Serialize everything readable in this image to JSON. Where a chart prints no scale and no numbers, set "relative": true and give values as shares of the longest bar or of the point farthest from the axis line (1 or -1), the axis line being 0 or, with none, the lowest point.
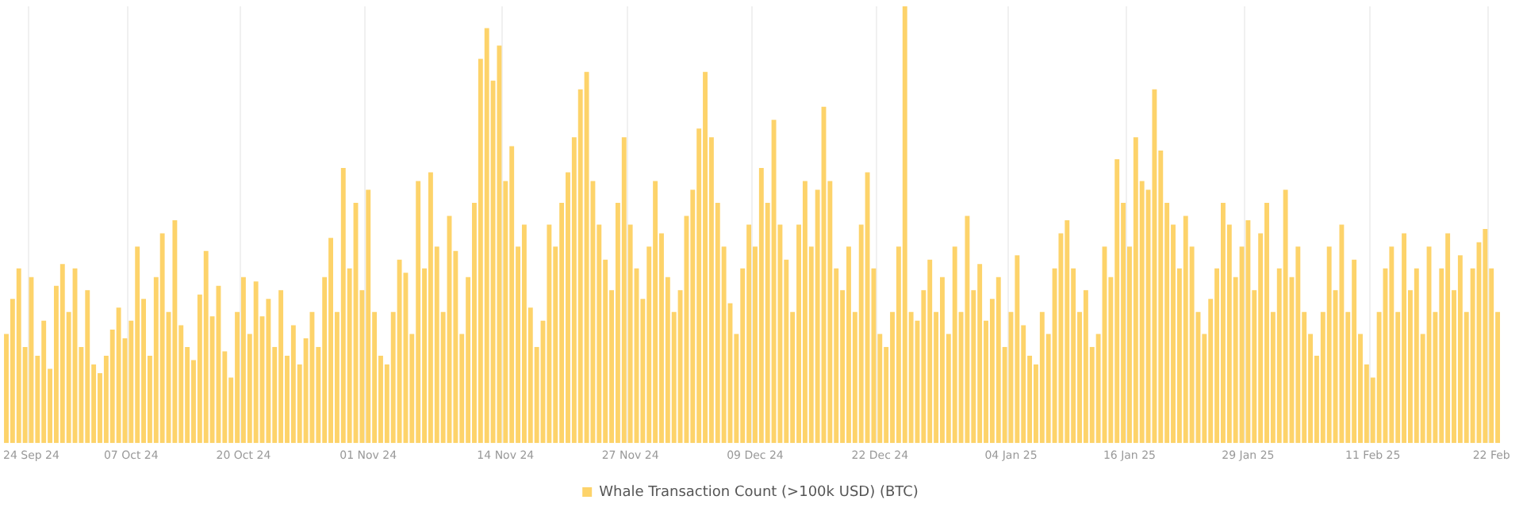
{
  "chart_data": {
    "type": "bar",
    "relative": true,
    "grid": "x",
    "legend": "bottom",
    "categories": [
      null,
      null,
      null,
      null,
      "24 Sep 24",
      null,
      null,
      null,
      null,
      null,
      null,
      null,
      null,
      null,
      null,
      null,
      null,
      null,
      null,
      null,
      "07 Oct 24",
      null,
      null,
      null,
      null,
      null,
      null,
      null,
      null,
      null,
      null,
      null,
      null,
      null,
      null,
      null,
      null,
      null,
      "20 Oct 24",
      null,
      null,
      null,
      null,
      null,
      null,
      null,
      null,
      null,
      null,
      null,
      null,
      null,
      null,
      null,
      null,
      null,
      null,
      null,
      "01 Nov 24",
      null,
      null,
      null,
      null,
      null,
      null,
      null,
      null,
      null,
      null,
      null,
      null,
      null,
      null,
      null,
      null,
      null,
      null,
      null,
      null,
      null,
      "14 Nov 24",
      null,
      null,
      null,
      null,
      null,
      null,
      null,
      null,
      null,
      null,
      null,
      null,
      null,
      null,
      null,
      null,
      null,
      null,
      null,
      "27 Nov 24",
      null,
      null,
      null,
      null,
      null,
      null,
      null,
      null,
      null,
      null,
      null,
      null,
      null,
      null,
      null,
      null,
      null,
      null,
      null,
      "09 Dec 24",
      null,
      null,
      null,
      null,
      null,
      null,
      null,
      null,
      null,
      null,
      null,
      null,
      null,
      null,
      null,
      null,
      null,
      null,
      null,
      "22 Dec 24",
      null,
      null,
      null,
      null,
      null,
      null,
      null,
      null,
      null,
      null,
      null,
      null,
      null,
      null,
      null,
      null,
      null,
      null,
      null,
      null,
      "04 Jan 25",
      null,
      null,
      null,
      null,
      null,
      null,
      null,
      null,
      null,
      null,
      null,
      null,
      null,
      null,
      null,
      null,
      null,
      null,
      "16 Jan 25",
      null,
      null,
      null,
      null,
      null,
      null,
      null,
      null,
      null,
      null,
      null,
      null,
      null,
      null,
      null,
      null,
      null,
      null,
      "29 Jan 25",
      null,
      null,
      null,
      null,
      null,
      null,
      null,
      null,
      null,
      null,
      null,
      null,
      null,
      null,
      null,
      null,
      null,
      null,
      null,
      "11 Feb 25",
      null,
      null,
      null,
      null,
      null,
      null,
      null,
      null,
      null,
      null,
      null,
      null,
      null,
      null,
      null,
      null,
      null,
      null,
      "22 Feb",
      null
    ],
    "series": [
      {
        "name": "Whale Transaction Count (>100k USD) (BTC)",
        "color": "#fdd36a",
        "values": [
          0.25,
          0.33,
          0.4,
          0.22,
          0.38,
          0.2,
          0.28,
          0.17,
          0.36,
          0.41,
          0.3,
          0.4,
          0.22,
          0.35,
          0.18,
          0.16,
          0.2,
          0.26,
          0.31,
          0.24,
          0.28,
          0.45,
          0.33,
          0.2,
          0.38,
          0.48,
          0.3,
          0.51,
          0.27,
          0.22,
          0.19,
          0.34,
          0.44,
          0.29,
          0.36,
          0.21,
          0.15,
          0.3,
          0.38,
          0.25,
          0.37,
          0.29,
          0.33,
          0.22,
          0.35,
          0.2,
          0.27,
          0.18,
          0.24,
          0.3,
          0.22,
          0.38,
          0.47,
          0.3,
          0.63,
          0.4,
          0.55,
          0.35,
          0.58,
          0.3,
          0.2,
          0.18,
          0.3,
          0.42,
          0.39,
          0.25,
          0.6,
          0.4,
          0.62,
          0.45,
          0.3,
          0.52,
          0.44,
          0.25,
          0.38,
          0.55,
          0.88,
          0.95,
          0.83,
          0.91,
          0.6,
          0.68,
          0.45,
          0.5,
          0.31,
          0.22,
          0.28,
          0.5,
          0.45,
          0.55,
          0.62,
          0.7,
          0.81,
          0.85,
          0.6,
          0.5,
          0.42,
          0.35,
          0.55,
          0.7,
          0.5,
          0.4,
          0.33,
          0.45,
          0.6,
          0.48,
          0.38,
          0.3,
          0.35,
          0.52,
          0.58,
          0.72,
          0.85,
          0.7,
          0.55,
          0.45,
          0.32,
          0.25,
          0.4,
          0.5,
          0.45,
          0.63,
          0.55,
          0.74,
          0.5,
          0.42,
          0.3,
          0.5,
          0.6,
          0.45,
          0.58,
          0.77,
          0.6,
          0.4,
          0.35,
          0.45,
          0.3,
          0.5,
          0.62,
          0.4,
          0.25,
          0.22,
          0.3,
          0.45,
          1,
          0.3,
          0.28,
          0.35,
          0.42,
          0.3,
          0.38,
          0.25,
          0.45,
          0.3,
          0.52,
          0.35,
          0.41,
          0.28,
          0.33,
          0.38,
          0.22,
          0.3,
          0.43,
          0.27,
          0.2,
          0.18,
          0.3,
          0.25,
          0.4,
          0.48,
          0.51,
          0.4,
          0.3,
          0.35,
          0.22,
          0.25,
          0.45,
          0.38,
          0.65,
          0.55,
          0.45,
          0.7,
          0.6,
          0.58,
          0.81,
          0.67,
          0.55,
          0.5,
          0.4,
          0.52,
          0.45,
          0.3,
          0.25,
          0.33,
          0.4,
          0.55,
          0.5,
          0.38,
          0.45,
          0.51,
          0.35,
          0.48,
          0.55,
          0.3,
          0.4,
          0.58,
          0.38,
          0.45,
          0.3,
          0.25,
          0.2,
          0.3,
          0.45,
          0.35,
          0.5,
          0.3,
          0.42,
          0.25,
          0.18,
          0.15,
          0.3,
          0.4,
          0.45,
          0.3,
          0.48,
          0.35,
          0.4,
          0.25,
          0.45,
          0.3,
          0.4,
          0.48,
          0.35,
          0.43,
          0.3,
          0.4,
          0.46,
          0.49,
          0.4,
          0.3
        ]
      }
    ]
  }
}
